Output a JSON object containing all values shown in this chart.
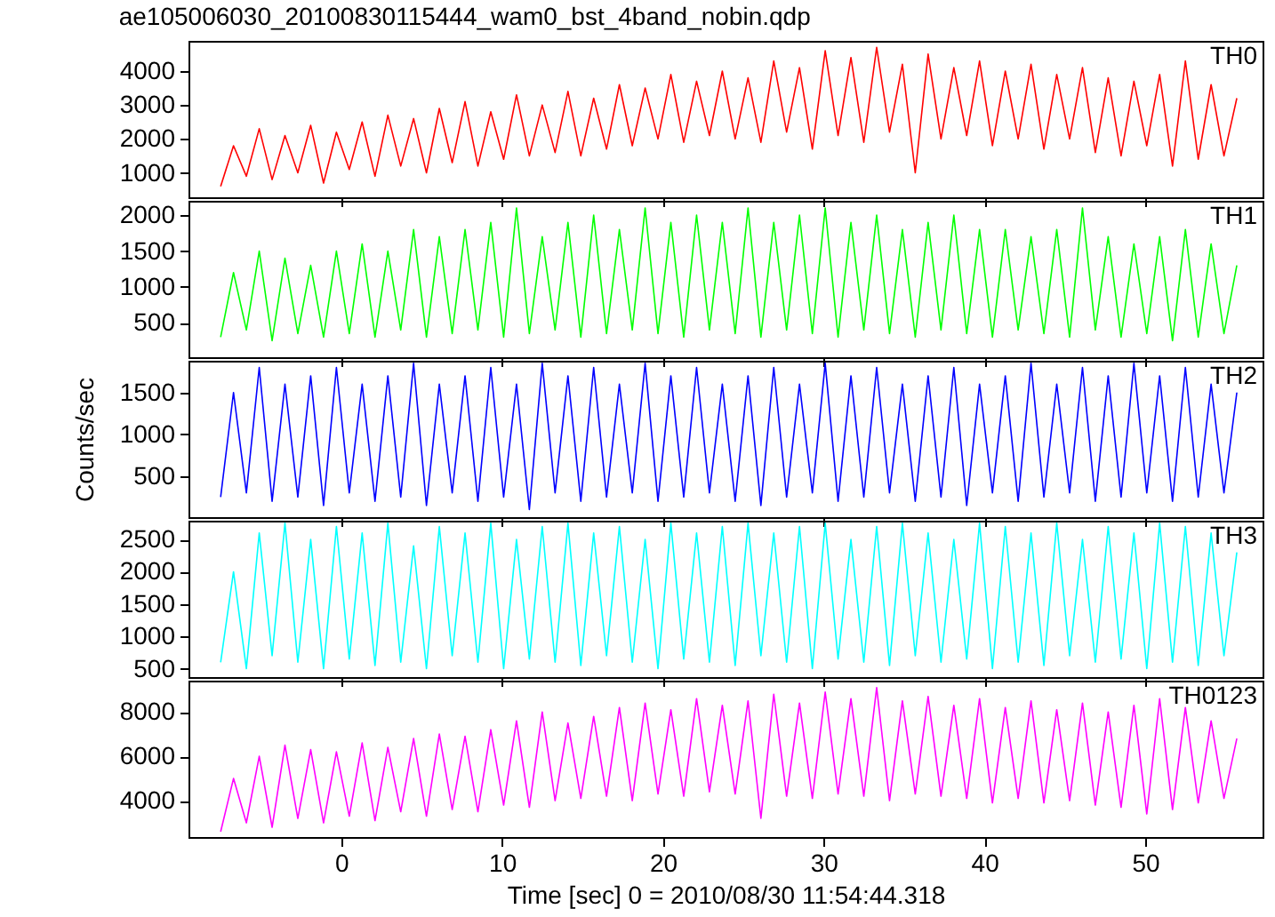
{
  "chart_data": [
    {
      "type": "line",
      "title": "ae105006030_20100830115444_wam0_bst_4band_nobin.qdp",
      "xlim": [
        -9.5,
        57.3
      ],
      "xticks": [
        0,
        10,
        20,
        30,
        40,
        50
      ],
      "ylim": [
        280,
        4890
      ],
      "yticks": [
        1000,
        2000,
        3000,
        4000
      ],
      "tick_labels": "y",
      "x": [
        -7.5,
        -6.7,
        -5.9,
        -5.1,
        -4.3,
        -3.5,
        -2.7,
        -1.9,
        -1.1,
        -0.3,
        0.5,
        1.3,
        2.1,
        2.9,
        3.7,
        4.5,
        5.3,
        6.1,
        6.9,
        7.7,
        8.5,
        9.3,
        10.1,
        10.9,
        11.7,
        12.5,
        13.3,
        14.1,
        14.9,
        15.7,
        16.5,
        17.3,
        18.1,
        18.9,
        19.7,
        20.5,
        21.3,
        22.1,
        22.9,
        23.7,
        24.5,
        25.3,
        26.1,
        26.9,
        27.7,
        28.5,
        29.3,
        30.1,
        30.9,
        31.7,
        32.5,
        33.3,
        34.1,
        34.9,
        35.7,
        36.5,
        37.3,
        38.1,
        38.9,
        39.7,
        40.5,
        41.3,
        42.1,
        42.9,
        43.7,
        44.5,
        45.3,
        46.1,
        46.9,
        47.7,
        48.5,
        49.3,
        50.1,
        50.9,
        51.7,
        52.5,
        53.3,
        54.1,
        54.9,
        55.7
      ],
      "series": [
        {
          "name": "TH0",
          "color": "#ff0000",
          "values": [
            600,
            1800,
            900,
            2300,
            800,
            2100,
            1000,
            2400,
            700,
            2200,
            1100,
            2500,
            900,
            2700,
            1200,
            2600,
            1000,
            2900,
            1300,
            3100,
            1200,
            2800,
            1400,
            3300,
            1500,
            3000,
            1600,
            3400,
            1500,
            3200,
            1700,
            3600,
            1800,
            3500,
            2000,
            3900,
            1900,
            3700,
            2100,
            4000,
            2000,
            3800,
            1900,
            4300,
            2200,
            4100,
            1700,
            4600,
            2100,
            4400,
            1900,
            4700,
            2200,
            4200,
            1000,
            4500,
            2000,
            4100,
            2100,
            4300,
            1800,
            4000,
            2000,
            4200,
            1700,
            3900,
            2000,
            4100,
            1600,
            3800,
            1500,
            3700,
            1800,
            3900,
            1200,
            4300,
            1400,
            3600,
            1500,
            3200
          ]
        }
      ]
    },
    {
      "type": "line",
      "xlim": [
        -9.5,
        57.3
      ],
      "xticks": [
        0,
        10,
        20,
        30,
        40,
        50
      ],
      "ylim": [
        20,
        2200
      ],
      "yticks": [
        500,
        1000,
        1500,
        2000
      ],
      "tick_labels": "y",
      "x": [
        -7.5,
        -6.7,
        -5.9,
        -5.1,
        -4.3,
        -3.5,
        -2.7,
        -1.9,
        -1.1,
        -0.3,
        0.5,
        1.3,
        2.1,
        2.9,
        3.7,
        4.5,
        5.3,
        6.1,
        6.9,
        7.7,
        8.5,
        9.3,
        10.1,
        10.9,
        11.7,
        12.5,
        13.3,
        14.1,
        14.9,
        15.7,
        16.5,
        17.3,
        18.1,
        18.9,
        19.7,
        20.5,
        21.3,
        22.1,
        22.9,
        23.7,
        24.5,
        25.3,
        26.1,
        26.9,
        27.7,
        28.5,
        29.3,
        30.1,
        30.9,
        31.7,
        32.5,
        33.3,
        34.1,
        34.9,
        35.7,
        36.5,
        37.3,
        38.1,
        38.9,
        39.7,
        40.5,
        41.3,
        42.1,
        42.9,
        43.7,
        44.5,
        45.3,
        46.1,
        46.9,
        47.7,
        48.5,
        49.3,
        50.1,
        50.9,
        51.7,
        52.5,
        53.3,
        54.1,
        54.9,
        55.7
      ],
      "series": [
        {
          "name": "TH1",
          "color": "#00ff00",
          "values": [
            300,
            1200,
            400,
            1500,
            250,
            1400,
            350,
            1300,
            300,
            1500,
            350,
            1600,
            300,
            1500,
            400,
            1800,
            300,
            1700,
            350,
            1800,
            400,
            1900,
            300,
            2100,
            350,
            1700,
            400,
            1900,
            300,
            2000,
            350,
            1800,
            400,
            2100,
            350,
            1900,
            300,
            2000,
            400,
            1900,
            350,
            2100,
            300,
            1900,
            400,
            2000,
            350,
            2100,
            300,
            1900,
            400,
            2000,
            350,
            1800,
            300,
            1900,
            400,
            2000,
            350,
            1800,
            300,
            1800,
            400,
            1700,
            350,
            1800,
            300,
            2100,
            400,
            1700,
            300,
            1600,
            350,
            1700,
            250,
            1800,
            300,
            1600,
            350,
            1300
          ]
        }
      ]
    },
    {
      "type": "line",
      "ylabel": "Counts/sec",
      "xlim": [
        -9.5,
        57.3
      ],
      "xticks": [
        0,
        10,
        20,
        30,
        40,
        50
      ],
      "ylim": [
        10,
        1880
      ],
      "yticks": [
        500,
        1000,
        1500
      ],
      "tick_labels": "y",
      "x": [
        -7.5,
        -6.7,
        -5.9,
        -5.1,
        -4.3,
        -3.5,
        -2.7,
        -1.9,
        -1.1,
        -0.3,
        0.5,
        1.3,
        2.1,
        2.9,
        3.7,
        4.5,
        5.3,
        6.1,
        6.9,
        7.7,
        8.5,
        9.3,
        10.1,
        10.9,
        11.7,
        12.5,
        13.3,
        14.1,
        14.9,
        15.7,
        16.5,
        17.3,
        18.1,
        18.9,
        19.7,
        20.5,
        21.3,
        22.1,
        22.9,
        23.7,
        24.5,
        25.3,
        26.1,
        26.9,
        27.7,
        28.5,
        29.3,
        30.1,
        30.9,
        31.7,
        32.5,
        33.3,
        34.1,
        34.9,
        35.7,
        36.5,
        37.3,
        38.1,
        38.9,
        39.7,
        40.5,
        41.3,
        42.1,
        42.9,
        43.7,
        44.5,
        45.3,
        46.1,
        46.9,
        47.7,
        48.5,
        49.3,
        50.1,
        50.9,
        51.7,
        52.5,
        53.3,
        54.1,
        54.9,
        55.7
      ],
      "series": [
        {
          "name": "TH2",
          "color": "#0000ff",
          "values": [
            250,
            1500,
            300,
            1800,
            200,
            1600,
            250,
            1700,
            150,
            1800,
            300,
            1600,
            200,
            1700,
            250,
            1850,
            150,
            1600,
            300,
            1700,
            200,
            1800,
            250,
            1600,
            100,
            1850,
            300,
            1700,
            200,
            1800,
            250,
            1600,
            300,
            1850,
            200,
            1700,
            250,
            1800,
            300,
            1600,
            200,
            1700,
            150,
            1800,
            250,
            1600,
            300,
            1850,
            200,
            1700,
            250,
            1800,
            300,
            1600,
            200,
            1700,
            250,
            1800,
            150,
            1600,
            300,
            1700,
            200,
            1850,
            250,
            1600,
            300,
            1800,
            200,
            1700,
            250,
            1850,
            300,
            1700,
            200,
            1800,
            250,
            1600,
            300,
            1500
          ]
        }
      ]
    },
    {
      "type": "line",
      "xlim": [
        -9.5,
        57.3
      ],
      "xticks": [
        0,
        10,
        20,
        30,
        40,
        50
      ],
      "ylim": [
        370,
        2790
      ],
      "yticks": [
        500,
        1000,
        1500,
        2000,
        2500
      ],
      "tick_labels": "y",
      "x": [
        -7.5,
        -6.7,
        -5.9,
        -5.1,
        -4.3,
        -3.5,
        -2.7,
        -1.9,
        -1.1,
        -0.3,
        0.5,
        1.3,
        2.1,
        2.9,
        3.7,
        4.5,
        5.3,
        6.1,
        6.9,
        7.7,
        8.5,
        9.3,
        10.1,
        10.9,
        11.7,
        12.5,
        13.3,
        14.1,
        14.9,
        15.7,
        16.5,
        17.3,
        18.1,
        18.9,
        19.7,
        20.5,
        21.3,
        22.1,
        22.9,
        23.7,
        24.5,
        25.3,
        26.1,
        26.9,
        27.7,
        28.5,
        29.3,
        30.1,
        30.9,
        31.7,
        32.5,
        33.3,
        34.1,
        34.9,
        35.7,
        36.5,
        37.3,
        38.1,
        38.9,
        39.7,
        40.5,
        41.3,
        42.1,
        42.9,
        43.7,
        44.5,
        45.3,
        46.1,
        46.9,
        47.7,
        48.5,
        49.3,
        50.1,
        50.9,
        51.7,
        52.5,
        53.3,
        54.1,
        54.9,
        55.7
      ],
      "series": [
        {
          "name": "TH3",
          "color": "#00ffff",
          "values": [
            600,
            2000,
            500,
            2600,
            700,
            2750,
            600,
            2500,
            500,
            2700,
            650,
            2600,
            550,
            2750,
            600,
            2400,
            500,
            2700,
            700,
            2600,
            600,
            2750,
            500,
            2500,
            650,
            2700,
            600,
            2750,
            550,
            2600,
            700,
            2700,
            600,
            2500,
            500,
            2750,
            650,
            2600,
            600,
            2700,
            550,
            2750,
            700,
            2600,
            600,
            2700,
            500,
            2750,
            650,
            2500,
            600,
            2700,
            550,
            2750,
            700,
            2600,
            600,
            2500,
            650,
            2750,
            500,
            2700,
            600,
            2600,
            550,
            2750,
            700,
            2500,
            600,
            2700,
            650,
            2600,
            500,
            2750,
            600,
            2700,
            550,
            2600,
            700,
            2300
          ]
        }
      ]
    },
    {
      "type": "line",
      "xlabel": "Time [sec] 0 = 2010/08/30 11:54:44.318",
      "xlim": [
        -9.5,
        57.3
      ],
      "xticks": [
        0,
        10,
        20,
        30,
        40,
        50
      ],
      "ylim": [
        2360,
        9410
      ],
      "yticks": [
        4000,
        6000,
        8000
      ],
      "x": [
        -7.5,
        -6.7,
        -5.9,
        -5.1,
        -4.3,
        -3.5,
        -2.7,
        -1.9,
        -1.1,
        -0.3,
        0.5,
        1.3,
        2.1,
        2.9,
        3.7,
        4.5,
        5.3,
        6.1,
        6.9,
        7.7,
        8.5,
        9.3,
        10.1,
        10.9,
        11.7,
        12.5,
        13.3,
        14.1,
        14.9,
        15.7,
        16.5,
        17.3,
        18.1,
        18.9,
        19.7,
        20.5,
        21.3,
        22.1,
        22.9,
        23.7,
        24.5,
        25.3,
        26.1,
        26.9,
        27.7,
        28.5,
        29.3,
        30.1,
        30.9,
        31.7,
        32.5,
        33.3,
        34.1,
        34.9,
        35.7,
        36.5,
        37.3,
        38.1,
        38.9,
        39.7,
        40.5,
        41.3,
        42.1,
        42.9,
        43.7,
        44.5,
        45.3,
        46.1,
        46.9,
        47.7,
        48.5,
        49.3,
        50.1,
        50.9,
        51.7,
        52.5,
        53.3,
        54.1,
        54.9,
        55.7
      ],
      "series": [
        {
          "name": "TH0123",
          "color": "#ff00ff",
          "values": [
            2600,
            5000,
            3000,
            6000,
            2800,
            6500,
            3200,
            6300,
            3000,
            6200,
            3300,
            6600,
            3100,
            6400,
            3500,
            6800,
            3300,
            7000,
            3600,
            6900,
            3500,
            7200,
            3800,
            7600,
            3700,
            8000,
            4000,
            7500,
            4100,
            7800,
            4200,
            8200,
            4000,
            8400,
            4300,
            8100,
            4200,
            8600,
            4400,
            8300,
            4300,
            8500,
            3200,
            8800,
            4200,
            8400,
            4100,
            8900,
            4300,
            8600,
            4200,
            9100,
            4000,
            8500,
            4300,
            8700,
            4200,
            8300,
            4100,
            8600,
            3900,
            8200,
            4100,
            8500,
            3900,
            8100,
            4000,
            8400,
            3800,
            8000,
            3700,
            8300,
            3400,
            8600,
            3600,
            8200,
            3900,
            7600,
            4100,
            6800
          ]
        }
      ]
    }
  ]
}
